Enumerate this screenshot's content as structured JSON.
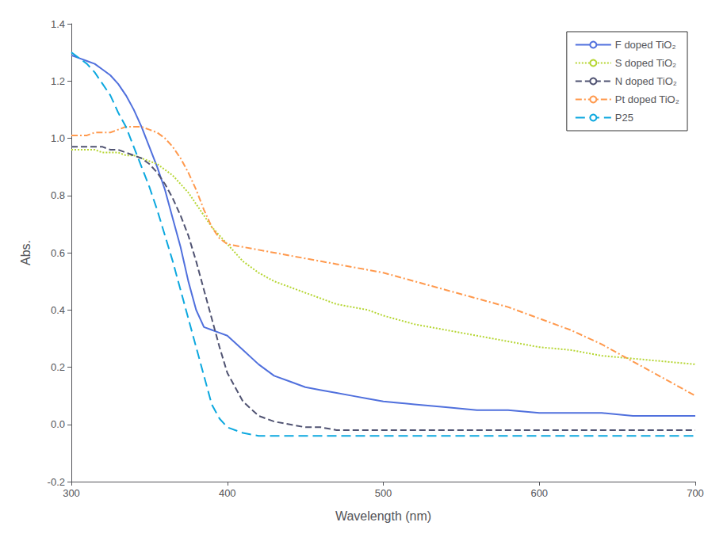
{
  "chart_data": {
    "type": "line",
    "xlabel": "Wavelength (nm)",
    "ylabel": "Abs.",
    "xlim": [
      300,
      700
    ],
    "ylim": [
      -0.2,
      1.4
    ],
    "xticks": [
      300,
      400,
      500,
      600,
      700
    ],
    "yticks": [
      -0.2,
      {
        "value": 0.0,
        "label": "0.0"
      },
      0.2,
      0.4,
      0.6,
      0.8,
      {
        "value": 1.0,
        "label": "1.0"
      },
      1.2,
      1.4
    ],
    "grid": false,
    "legend": "upper right",
    "series": [
      {
        "name": "F doped TiO₂",
        "line_style": "solid",
        "x": [
          300,
          305,
          310,
          315,
          320,
          325,
          330,
          335,
          340,
          345,
          350,
          355,
          360,
          365,
          370,
          375,
          380,
          385,
          390,
          395,
          400,
          410,
          420,
          430,
          440,
          450,
          460,
          470,
          480,
          490,
          500,
          520,
          540,
          560,
          580,
          600,
          620,
          640,
          660,
          680,
          700
        ],
        "values": [
          1.29,
          1.28,
          1.27,
          1.26,
          1.24,
          1.22,
          1.19,
          1.15,
          1.1,
          1.04,
          0.97,
          0.9,
          0.82,
          0.72,
          0.62,
          0.5,
          0.4,
          0.34,
          0.33,
          0.32,
          0.31,
          0.26,
          0.21,
          0.17,
          0.15,
          0.13,
          0.12,
          0.11,
          0.1,
          0.09,
          0.08,
          0.07,
          0.06,
          0.05,
          0.05,
          0.04,
          0.04,
          0.04,
          0.03,
          0.03,
          0.03
        ]
      },
      {
        "name": "S doped TiO₂",
        "line_style": "dotted",
        "x": [
          300,
          305,
          310,
          315,
          320,
          325,
          330,
          335,
          340,
          345,
          350,
          355,
          360,
          365,
          370,
          375,
          380,
          385,
          390,
          395,
          400,
          410,
          420,
          430,
          440,
          450,
          460,
          470,
          480,
          490,
          500,
          520,
          540,
          560,
          580,
          600,
          620,
          640,
          660,
          680,
          700
        ],
        "values": [
          0.96,
          0.96,
          0.96,
          0.96,
          0.95,
          0.95,
          0.95,
          0.94,
          0.94,
          0.93,
          0.92,
          0.91,
          0.89,
          0.87,
          0.84,
          0.81,
          0.77,
          0.73,
          0.69,
          0.66,
          0.63,
          0.57,
          0.53,
          0.5,
          0.48,
          0.46,
          0.44,
          0.42,
          0.41,
          0.4,
          0.38,
          0.35,
          0.33,
          0.31,
          0.29,
          0.27,
          0.26,
          0.24,
          0.23,
          0.22,
          0.21
        ]
      },
      {
        "name": "N doped TiO₂",
        "line_style": "dashed",
        "x": [
          300,
          305,
          310,
          315,
          320,
          325,
          330,
          335,
          340,
          345,
          350,
          355,
          360,
          365,
          370,
          375,
          380,
          385,
          390,
          395,
          400,
          410,
          420,
          430,
          440,
          450,
          460,
          470,
          480,
          490,
          500,
          520,
          540,
          560,
          580,
          600,
          620,
          640,
          660,
          680,
          700
        ],
        "values": [
          0.97,
          0.97,
          0.97,
          0.97,
          0.97,
          0.96,
          0.96,
          0.95,
          0.94,
          0.93,
          0.91,
          0.88,
          0.84,
          0.79,
          0.73,
          0.66,
          0.57,
          0.47,
          0.37,
          0.27,
          0.18,
          0.08,
          0.03,
          0.01,
          0.0,
          -0.01,
          -0.01,
          -0.02,
          -0.02,
          -0.02,
          -0.02,
          -0.02,
          -0.02,
          -0.02,
          -0.02,
          -0.02,
          -0.02,
          -0.02,
          -0.02,
          -0.02,
          -0.02
        ]
      },
      {
        "name": "Pt doped TiO₂",
        "line_style": "dashdot",
        "x": [
          300,
          305,
          310,
          315,
          320,
          325,
          330,
          335,
          340,
          345,
          350,
          355,
          360,
          365,
          370,
          375,
          380,
          385,
          390,
          395,
          400,
          410,
          420,
          430,
          440,
          450,
          460,
          470,
          480,
          490,
          500,
          520,
          540,
          560,
          580,
          600,
          620,
          640,
          660,
          680,
          700
        ],
        "values": [
          1.01,
          1.01,
          1.01,
          1.02,
          1.02,
          1.02,
          1.03,
          1.04,
          1.04,
          1.04,
          1.03,
          1.02,
          1.0,
          0.97,
          0.93,
          0.88,
          0.82,
          0.75,
          0.69,
          0.65,
          0.63,
          0.62,
          0.61,
          0.6,
          0.59,
          0.58,
          0.57,
          0.56,
          0.55,
          0.54,
          0.53,
          0.5,
          0.47,
          0.44,
          0.41,
          0.37,
          0.33,
          0.28,
          0.22,
          0.16,
          0.1
        ]
      },
      {
        "name": "P25",
        "line_style": "loosely_dashed",
        "x": [
          300,
          305,
          310,
          315,
          320,
          325,
          330,
          335,
          340,
          345,
          350,
          355,
          360,
          365,
          370,
          375,
          380,
          385,
          390,
          395,
          400,
          410,
          420,
          430,
          440,
          450,
          460,
          470,
          480,
          490,
          500,
          520,
          540,
          560,
          580,
          600,
          620,
          640,
          660,
          680,
          700
        ],
        "values": [
          1.3,
          1.28,
          1.26,
          1.23,
          1.19,
          1.15,
          1.09,
          1.04,
          0.97,
          0.9,
          0.83,
          0.75,
          0.66,
          0.57,
          0.47,
          0.37,
          0.27,
          0.17,
          0.07,
          0.02,
          -0.01,
          -0.03,
          -0.04,
          -0.04,
          -0.04,
          -0.04,
          -0.04,
          -0.04,
          -0.04,
          -0.04,
          -0.04,
          -0.04,
          -0.04,
          -0.04,
          -0.04,
          -0.04,
          -0.04,
          -0.04,
          -0.04,
          -0.04,
          -0.04
        ]
      }
    ]
  }
}
